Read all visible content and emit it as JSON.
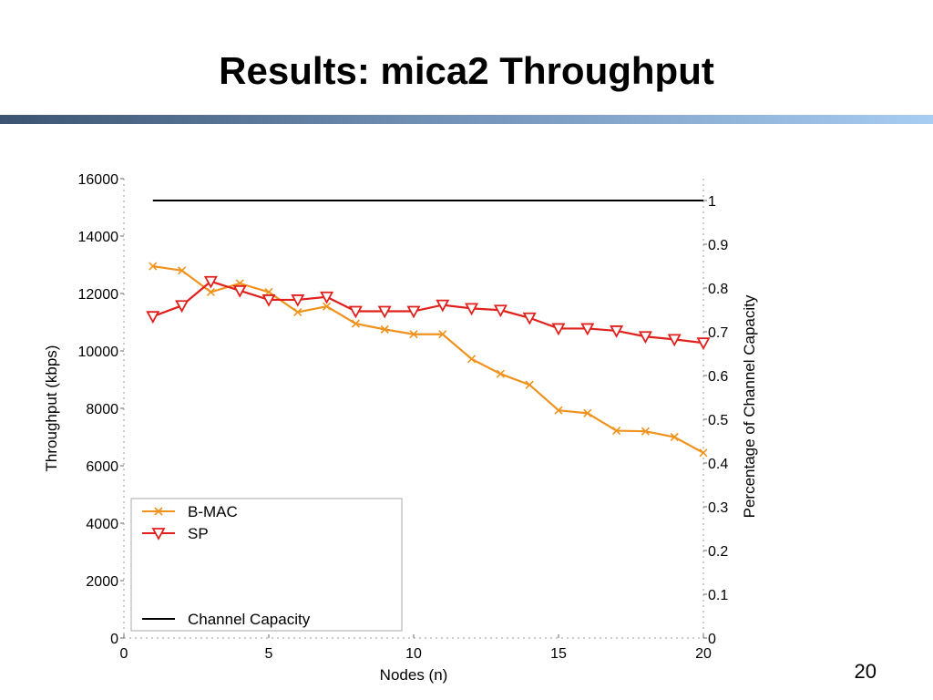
{
  "slide": {
    "title": "Results: mica2 Throughput",
    "page_number": "20"
  },
  "colors": {
    "bmac": "#f0921e",
    "sp": "#e0201c",
    "capacity": "#000000"
  },
  "chart_data": {
    "type": "line",
    "title": "",
    "xlabel": "Nodes (n)",
    "ylabel": "Throughput (kbps)",
    "y2label": "Percentage of Channel Capacity",
    "xlim": [
      0,
      20
    ],
    "ylim": [
      0,
      16000
    ],
    "y2lim": [
      0,
      1.05
    ],
    "x_ticks": [
      "0",
      "5",
      "10",
      "15",
      "20"
    ],
    "y_ticks": [
      "0",
      "2000",
      "4000",
      "6000",
      "8000",
      "10000",
      "12000",
      "14000",
      "16000"
    ],
    "y2_ticks": [
      "0",
      "0.1",
      "0.2",
      "0.3",
      "0.4",
      "0.5",
      "0.6",
      "0.7",
      "0.8",
      "0.9",
      "1"
    ],
    "grid": false,
    "legend": "bottom-left",
    "x": [
      1,
      2,
      3,
      4,
      5,
      6,
      7,
      8,
      9,
      10,
      11,
      12,
      13,
      14,
      15,
      16,
      17,
      18,
      19,
      20
    ],
    "series": [
      {
        "name": "B-MAC",
        "marker": "x",
        "axis": "left",
        "values": [
          12950,
          12800,
          12050,
          12350,
          12050,
          11350,
          11550,
          10950,
          10750,
          10580,
          10580,
          9720,
          9200,
          8820,
          7930,
          7830,
          7220,
          7200,
          7000,
          6450
        ]
      },
      {
        "name": "SP",
        "marker": "triangle-down",
        "axis": "left",
        "values": [
          11200,
          11580,
          12420,
          12100,
          11780,
          11780,
          11880,
          11380,
          11380,
          11380,
          11600,
          11480,
          11420,
          11150,
          10780,
          10780,
          10700,
          10500,
          10400,
          10280
        ]
      },
      {
        "name": "Channel Capacity",
        "marker": "none",
        "axis": "right",
        "values": [
          1,
          1,
          1,
          1,
          1,
          1,
          1,
          1,
          1,
          1,
          1,
          1,
          1,
          1,
          1,
          1,
          1,
          1,
          1,
          1
        ]
      }
    ]
  }
}
